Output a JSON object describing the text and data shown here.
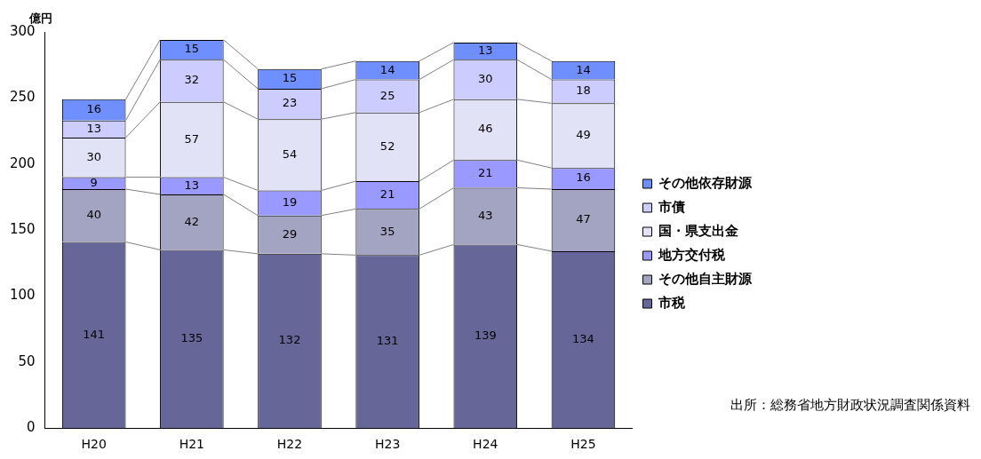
{
  "chart_data": {
    "type": "bar",
    "stacked": true,
    "ylabel": "億円",
    "categories": [
      "H20",
      "H21",
      "H22",
      "H23",
      "H24",
      "H25"
    ],
    "series": [
      {
        "name": "市税",
        "color": "#666699",
        "values": [
          141,
          135,
          132,
          131,
          139,
          134
        ]
      },
      {
        "name": "その他自主財源",
        "color": "#a3a3c2",
        "values": [
          40,
          42,
          29,
          35,
          43,
          47
        ]
      },
      {
        "name": "地方交付税",
        "color": "#9999ff",
        "values": [
          9,
          13,
          19,
          21,
          21,
          16
        ]
      },
      {
        "name": "国・県支出金",
        "color": "#e2e2f6",
        "values": [
          30,
          57,
          54,
          52,
          46,
          49
        ]
      },
      {
        "name": "市債",
        "color": "#ccccff",
        "values": [
          13,
          32,
          23,
          25,
          30,
          18
        ]
      },
      {
        "name": "その他依存財源",
        "color": "#6f8fff",
        "values": [
          16,
          15,
          15,
          14,
          13,
          14
        ]
      }
    ],
    "ylim": [
      0,
      300
    ],
    "yticks": [
      0,
      50,
      100,
      150,
      200,
      250,
      300
    ],
    "grid": false,
    "legend": "right",
    "data_labels": true,
    "annotations": [
      "出所：総務省地方財政状況調査関係資料"
    ]
  }
}
